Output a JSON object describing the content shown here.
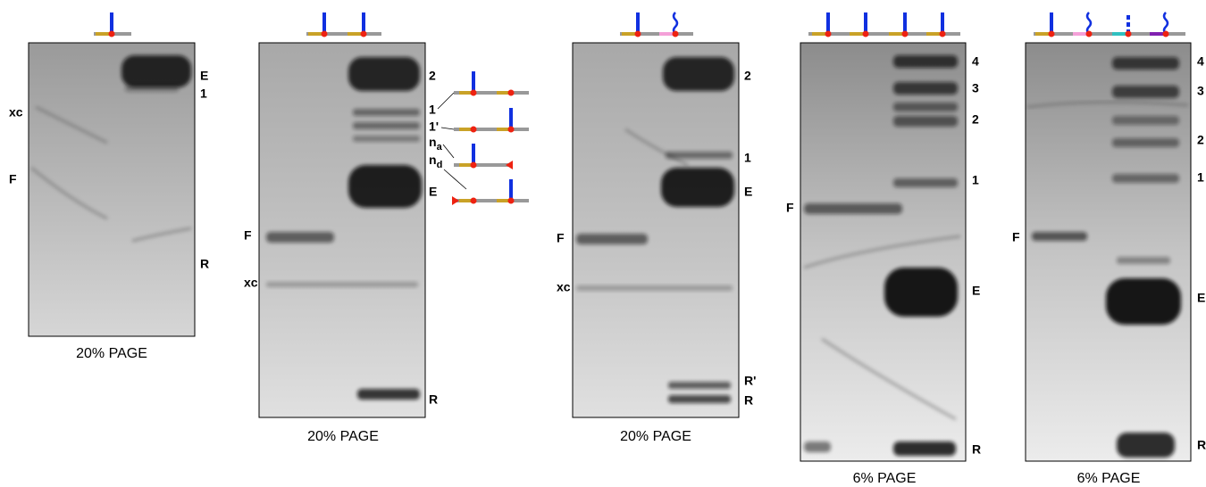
{
  "panels": [
    {
      "caption": "20% PAGE",
      "left_labels": [
        "xc",
        "F"
      ],
      "right_labels": [
        "E",
        "1",
        "R"
      ]
    },
    {
      "caption": "20% PAGE",
      "left_labels": [
        "F",
        "xc"
      ],
      "right_labels": [
        "2",
        "1",
        "1'",
        {
          "text": "n",
          "subscript": "a"
        },
        {
          "text": "n",
          "subscript": "d"
        },
        "E",
        "R"
      ]
    },
    {
      "caption": "20% PAGE",
      "left_labels": [
        "F",
        "xc"
      ],
      "right_labels": [
        "2",
        "1",
        "E",
        "R'",
        "R"
      ]
    },
    {
      "caption": "6% PAGE",
      "left_labels": [
        "F"
      ],
      "right_labels": [
        "4",
        "3",
        "2",
        "1",
        "E",
        "R"
      ]
    },
    {
      "caption": "6% PAGE",
      "left_labels": [
        "F"
      ],
      "right_labels": [
        "4",
        "3",
        "2",
        "1",
        "E",
        "R"
      ]
    }
  ]
}
